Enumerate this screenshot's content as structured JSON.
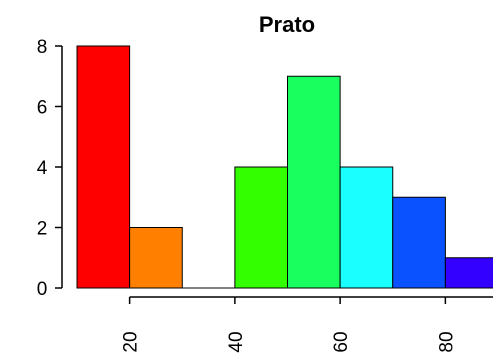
{
  "chart_data": {
    "type": "bar",
    "title": "Prato",
    "xlabel": "",
    "ylabel": "",
    "bins": [
      {
        "from": 10,
        "to": 20,
        "value": 8,
        "color": "#FF0000"
      },
      {
        "from": 20,
        "to": 30,
        "value": 2,
        "color": "#FF8000"
      },
      {
        "from": 30,
        "to": 40,
        "value": 0,
        "color": "#FFFF00"
      },
      {
        "from": 40,
        "to": 50,
        "value": 4,
        "color": "#33FF00"
      },
      {
        "from": 50,
        "to": 60,
        "value": 7,
        "color": "#19FF5E"
      },
      {
        "from": 60,
        "to": 70,
        "value": 4,
        "color": "#1AFFFF"
      },
      {
        "from": 70,
        "to": 80,
        "value": 3,
        "color": "#0A52FF"
      },
      {
        "from": 80,
        "to": 90,
        "value": 1,
        "color": "#3300FF"
      }
    ],
    "xlim": [
      10,
      90
    ],
    "ylim": [
      0,
      8
    ],
    "x_ticks": [
      "20",
      "40",
      "60",
      "80"
    ],
    "y_ticks": [
      "0",
      "2",
      "4",
      "6",
      "8"
    ],
    "x_tick_values": [
      20,
      40,
      60,
      80
    ],
    "y_tick_values": [
      0,
      2,
      4,
      6,
      8
    ],
    "grid": false,
    "legend": "none"
  }
}
